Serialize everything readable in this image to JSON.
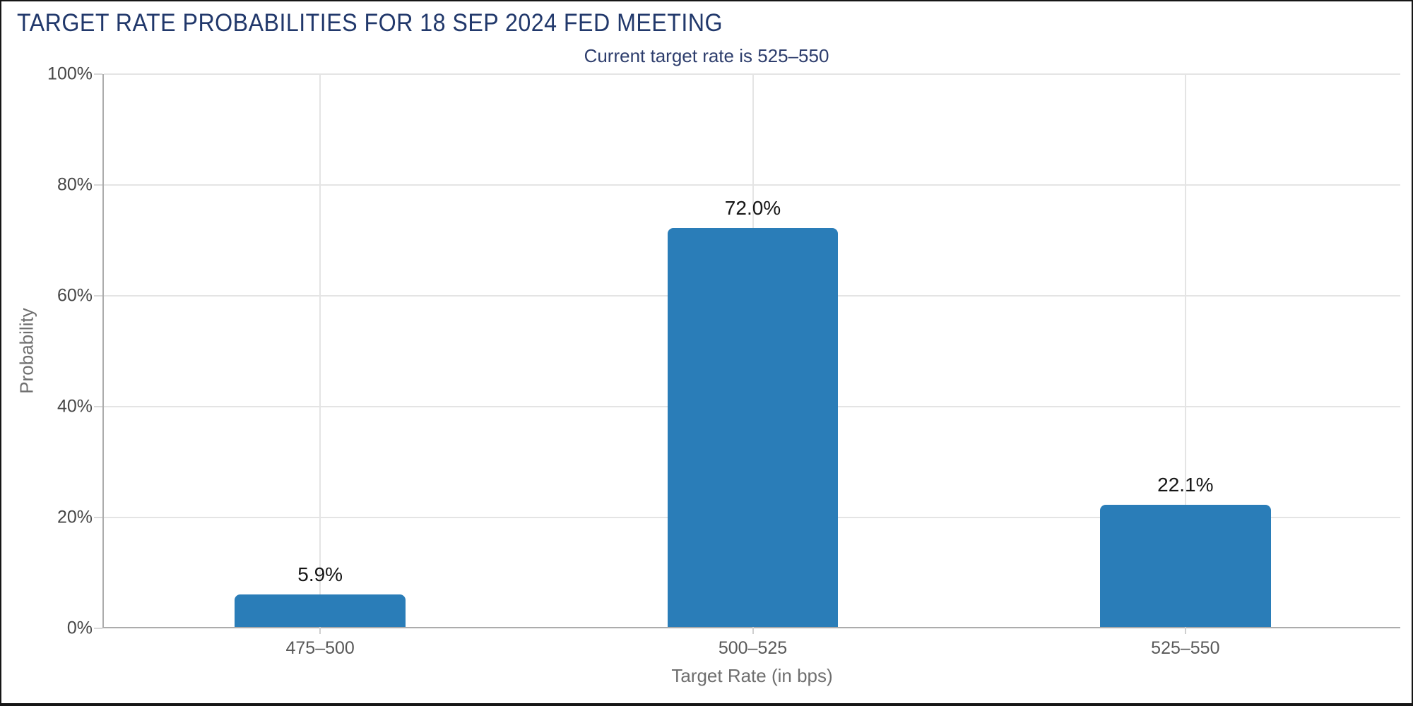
{
  "chart_data": {
    "type": "bar",
    "title": "TARGET RATE PROBABILITIES FOR 18 SEP 2024 FED MEETING",
    "subtitle": "Current target rate is 525–550",
    "categories": [
      "475–500",
      "500–525",
      "525–550"
    ],
    "values": [
      5.9,
      72.0,
      22.1
    ],
    "value_labels": [
      "5.9%",
      "72.0%",
      "22.1%"
    ],
    "xlabel": "Target Rate (in bps)",
    "ylabel": "Probability",
    "ylim": [
      0,
      100
    ],
    "yticks": [
      0,
      20,
      40,
      60,
      80,
      100
    ],
    "ytick_labels": [
      "0%",
      "20%",
      "40%",
      "60%",
      "80%",
      "100%"
    ],
    "grid": true,
    "legend_position": "none",
    "bar_color": "#2A7DB8"
  },
  "colors": {
    "background": "#FFFFFF",
    "border": "#161616",
    "title": "#21386B",
    "subtitle": "#2E3E6D",
    "bar": "#2A7DB8",
    "grid": "#E4E4E4",
    "axis": "#ACACAC",
    "ytick_label": "#474747",
    "xtick_label": "#595959",
    "axis_title": "#6F6F6F",
    "value_label": "#161616"
  }
}
